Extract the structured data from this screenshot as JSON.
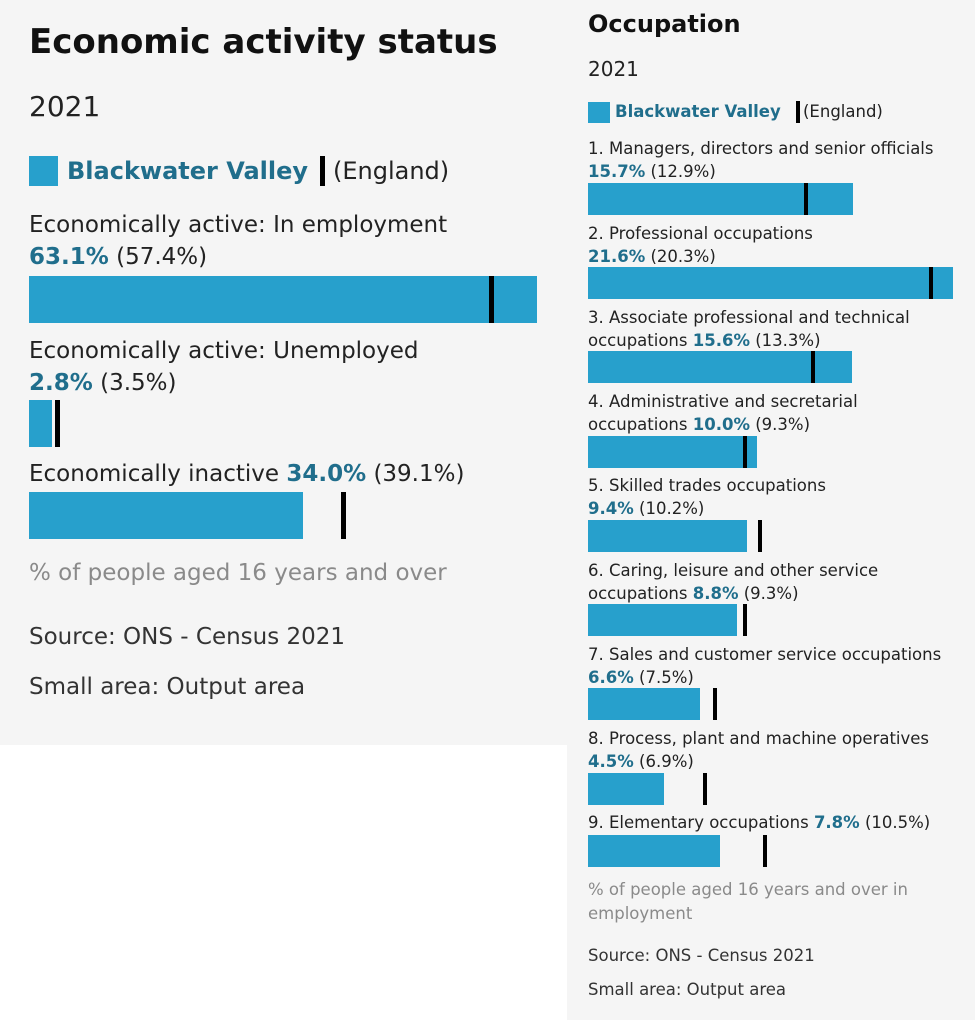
{
  "left": {
    "title": "Economic activity status",
    "year": "2021",
    "legend": {
      "area": "Blackwater Valley",
      "comparison": "(England)"
    },
    "items": [
      {
        "label": "Economically active: In employment",
        "value_text": "63.1%",
        "compare_text": "(57.4%)"
      },
      {
        "label": "Economically active: Unemployed",
        "value_text": "2.8%",
        "compare_text": "(3.5%)"
      },
      {
        "label": "Economically inactive",
        "value_text": "34.0%",
        "compare_text": "(39.1%)"
      }
    ],
    "note": "% of people aged 16 years and over",
    "source": "Source: ONS - Census 2021",
    "small_area": "Small area: Output area"
  },
  "right": {
    "title": "Occupation",
    "year": "2021",
    "legend": {
      "area": "Blackwater Valley",
      "comparison": "(England)"
    },
    "items": [
      {
        "label": "1. Managers, directors and senior officials",
        "value_text": "15.7%",
        "compare_text": "(12.9%)"
      },
      {
        "label": "2. Professional occupations",
        "value_text": "21.6%",
        "compare_text": "(20.3%)"
      },
      {
        "label": "3. Associate professional and technical occupations",
        "value_text": "15.6%",
        "compare_text": "(13.3%)"
      },
      {
        "label": "4. Administrative and secretarial occupations",
        "value_text": "10.0%",
        "compare_text": "(9.3%)"
      },
      {
        "label": "5. Skilled trades occupations",
        "value_text": "9.4%",
        "compare_text": "(10.2%)"
      },
      {
        "label": "6. Caring, leisure and other service occupations",
        "value_text": "8.8%",
        "compare_text": "(9.3%)"
      },
      {
        "label": "7. Sales and customer service occupations",
        "value_text": "6.6%",
        "compare_text": "(7.5%)"
      },
      {
        "label": "8. Process, plant and machine operatives",
        "value_text": "4.5%",
        "compare_text": "(6.9%)"
      },
      {
        "label": "9. Elementary occupations",
        "value_text": "7.8%",
        "compare_text": "(10.5%)"
      }
    ],
    "note": "% of people aged 16 years and over in employment",
    "source": "Source: ONS - Census 2021",
    "small_area": "Small area: Output area"
  },
  "colors": {
    "area_bar": "#27a0cc",
    "area_text": "#206e8c",
    "comparison_marker": "#000000",
    "panel_bg": "#f5f5f5"
  },
  "chart_data": [
    {
      "type": "bar",
      "orientation": "horizontal",
      "title": "Economic activity status",
      "subtitle": "2021",
      "categories": [
        "Economically active: In employment",
        "Economically active: Unemployed",
        "Economically inactive"
      ],
      "series": [
        {
          "name": "Blackwater Valley",
          "values": [
            63.1,
            2.8,
            34.0
          ]
        },
        {
          "name": "England",
          "values": [
            57.4,
            3.5,
            39.1
          ],
          "style": "marker"
        }
      ],
      "xlabel": "% of people aged 16 years and over",
      "legend": "top"
    },
    {
      "type": "bar",
      "orientation": "horizontal",
      "title": "Occupation",
      "subtitle": "2021",
      "categories": [
        "1. Managers, directors and senior officials",
        "2. Professional occupations",
        "3. Associate professional and technical occupations",
        "4. Administrative and secretarial occupations",
        "5. Skilled trades occupations",
        "6. Caring, leisure and other service occupations",
        "7. Sales and customer service occupations",
        "8. Process, plant and machine operatives",
        "9. Elementary occupations"
      ],
      "series": [
        {
          "name": "Blackwater Valley",
          "values": [
            15.7,
            21.6,
            15.6,
            10.0,
            9.4,
            8.8,
            6.6,
            4.5,
            7.8
          ]
        },
        {
          "name": "England",
          "values": [
            12.9,
            20.3,
            13.3,
            9.3,
            10.2,
            9.3,
            7.5,
            6.9,
            10.5
          ],
          "style": "marker"
        }
      ],
      "xlabel": "% of people aged 16 years and over in employment",
      "legend": "top"
    }
  ]
}
